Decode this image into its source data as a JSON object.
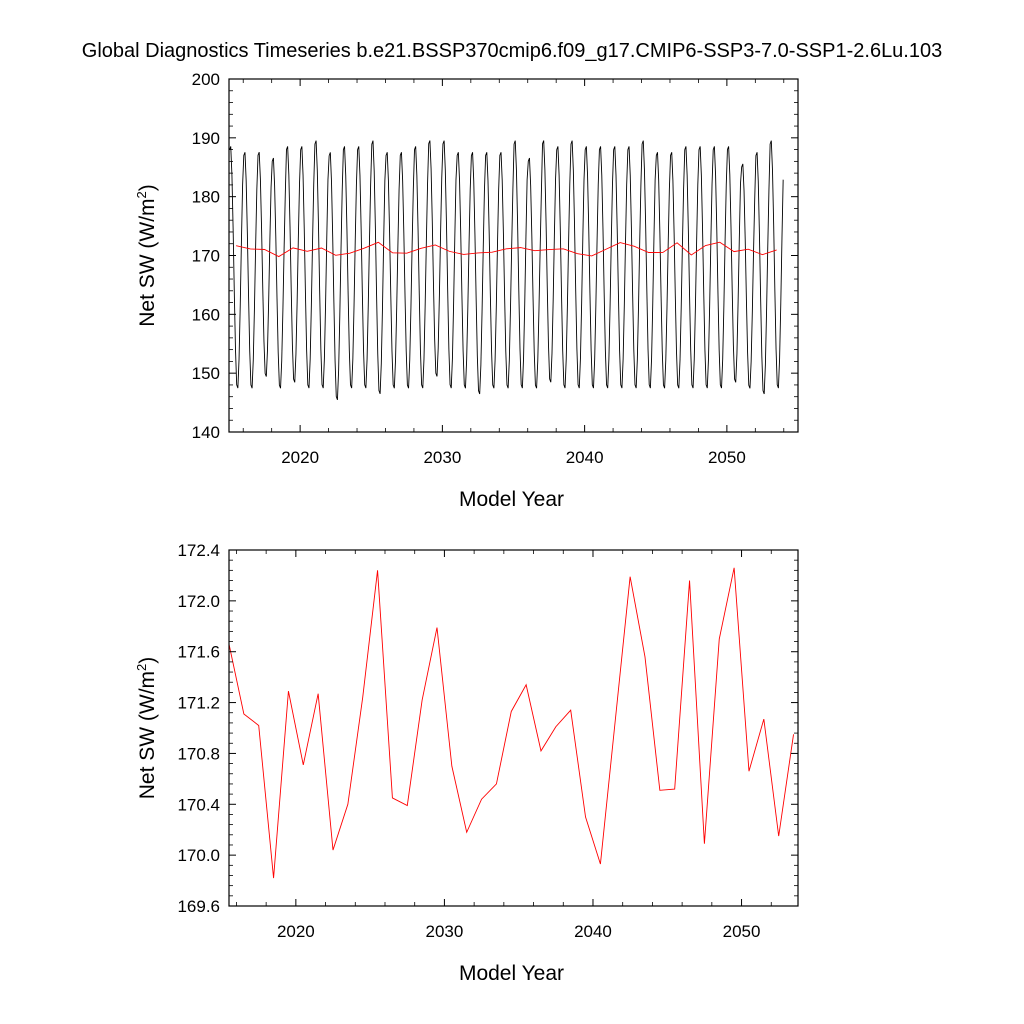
{
  "title": "Global Diagnostics Timeseries b.e21.BSSP370cmip6.f09_g17.CMIP6-SSP3-7.0-SSP1-2.6Lu.103",
  "chart_data": [
    {
      "type": "line",
      "xlabel": "Model Year",
      "ylabel": "Net SW (W/m²)",
      "xlim": [
        2015,
        2055
      ],
      "ylim": [
        140,
        200
      ],
      "xticks": [
        2020,
        2030,
        2040,
        2050
      ],
      "yticks": [
        140,
        150,
        160,
        170,
        180,
        190,
        200
      ],
      "ytick_labels": [
        "140",
        "150",
        "160",
        "170",
        "180",
        "190",
        "200"
      ],
      "grid": false,
      "series": [
        {
          "kind": "monthly",
          "color": "#000000",
          "start": 2015.04,
          "step": 0.0833333,
          "annual_max": [
            189,
            188,
            188,
            187,
            189,
            189,
            190,
            188,
            189,
            189,
            190,
            188,
            188,
            189,
            190,
            190,
            188,
            188,
            188,
            188,
            190,
            187,
            190,
            189,
            190,
            189,
            189,
            189,
            189,
            190,
            188,
            188,
            189,
            189,
            189,
            189,
            186,
            188,
            190
          ],
          "annual_min": [
            147,
            147,
            149,
            147,
            148,
            147,
            147,
            145,
            147,
            147,
            146,
            147,
            147,
            147,
            149,
            147,
            147,
            146,
            147,
            147,
            147,
            147,
            148,
            147,
            147,
            147,
            147,
            147,
            147,
            147,
            147,
            147,
            147,
            147,
            147,
            148,
            147,
            146,
            147
          ]
        },
        {
          "kind": "annual",
          "color": "#ff0000",
          "x": [
            2015.5,
            2016.5,
            2017.5,
            2018.5,
            2019.5,
            2020.5,
            2021.5,
            2022.5,
            2023.5,
            2024.5,
            2025.5,
            2026.5,
            2027.5,
            2028.5,
            2029.5,
            2030.5,
            2031.5,
            2032.5,
            2033.5,
            2034.5,
            2035.5,
            2036.5,
            2037.5,
            2038.5,
            2039.5,
            2040.5,
            2041.5,
            2042.5,
            2043.5,
            2044.5,
            2045.5,
            2046.5,
            2047.5,
            2048.5,
            2049.5,
            2050.5,
            2051.5,
            2052.5,
            2053.5
          ],
          "y": [
            171.66,
            171.11,
            171.02,
            169.82,
            171.29,
            170.71,
            171.27,
            170.04,
            170.4,
            171.24,
            172.24,
            170.45,
            170.39,
            171.22,
            171.79,
            170.7,
            170.18,
            170.44,
            170.56,
            171.13,
            171.34,
            170.82,
            171.01,
            171.14,
            170.3,
            169.93,
            171.06,
            172.19,
            171.56,
            170.51,
            170.52,
            172.16,
            170.09,
            171.7,
            172.26,
            170.66,
            171.07,
            170.15,
            170.95
          ]
        }
      ]
    },
    {
      "type": "line",
      "xlabel": "Model Year",
      "ylabel": "Net SW (W/m²)",
      "xlim": [
        2015.5,
        2053.8
      ],
      "ylim": [
        169.6,
        172.4
      ],
      "xticks": [
        2020,
        2030,
        2040,
        2050
      ],
      "yticks": [
        169.6,
        170.0,
        170.4,
        170.8,
        171.2,
        171.6,
        172.0,
        172.4
      ],
      "ytick_labels": [
        "169.6",
        "170.0",
        "170.4",
        "170.8",
        "171.2",
        "171.6",
        "172.0",
        "172.4"
      ],
      "grid": false,
      "series": [
        {
          "kind": "annual",
          "color": "#ff0000",
          "x": [
            2015.5,
            2016.5,
            2017.5,
            2018.5,
            2019.5,
            2020.5,
            2021.5,
            2022.5,
            2023.5,
            2024.5,
            2025.5,
            2026.5,
            2027.5,
            2028.5,
            2029.5,
            2030.5,
            2031.5,
            2032.5,
            2033.5,
            2034.5,
            2035.5,
            2036.5,
            2037.5,
            2038.5,
            2039.5,
            2040.5,
            2041.5,
            2042.5,
            2043.5,
            2044.5,
            2045.5,
            2046.5,
            2047.5,
            2048.5,
            2049.5,
            2050.5,
            2051.5,
            2052.5,
            2053.5
          ],
          "y": [
            171.66,
            171.11,
            171.02,
            169.82,
            171.29,
            170.71,
            171.27,
            170.04,
            170.4,
            171.24,
            172.24,
            170.45,
            170.39,
            171.22,
            171.79,
            170.7,
            170.18,
            170.44,
            170.56,
            171.13,
            171.34,
            170.82,
            171.01,
            171.14,
            170.3,
            169.93,
            171.06,
            172.19,
            171.56,
            170.51,
            170.52,
            172.16,
            170.09,
            171.7,
            172.26,
            170.66,
            171.07,
            170.15,
            170.95
          ]
        }
      ]
    }
  ]
}
